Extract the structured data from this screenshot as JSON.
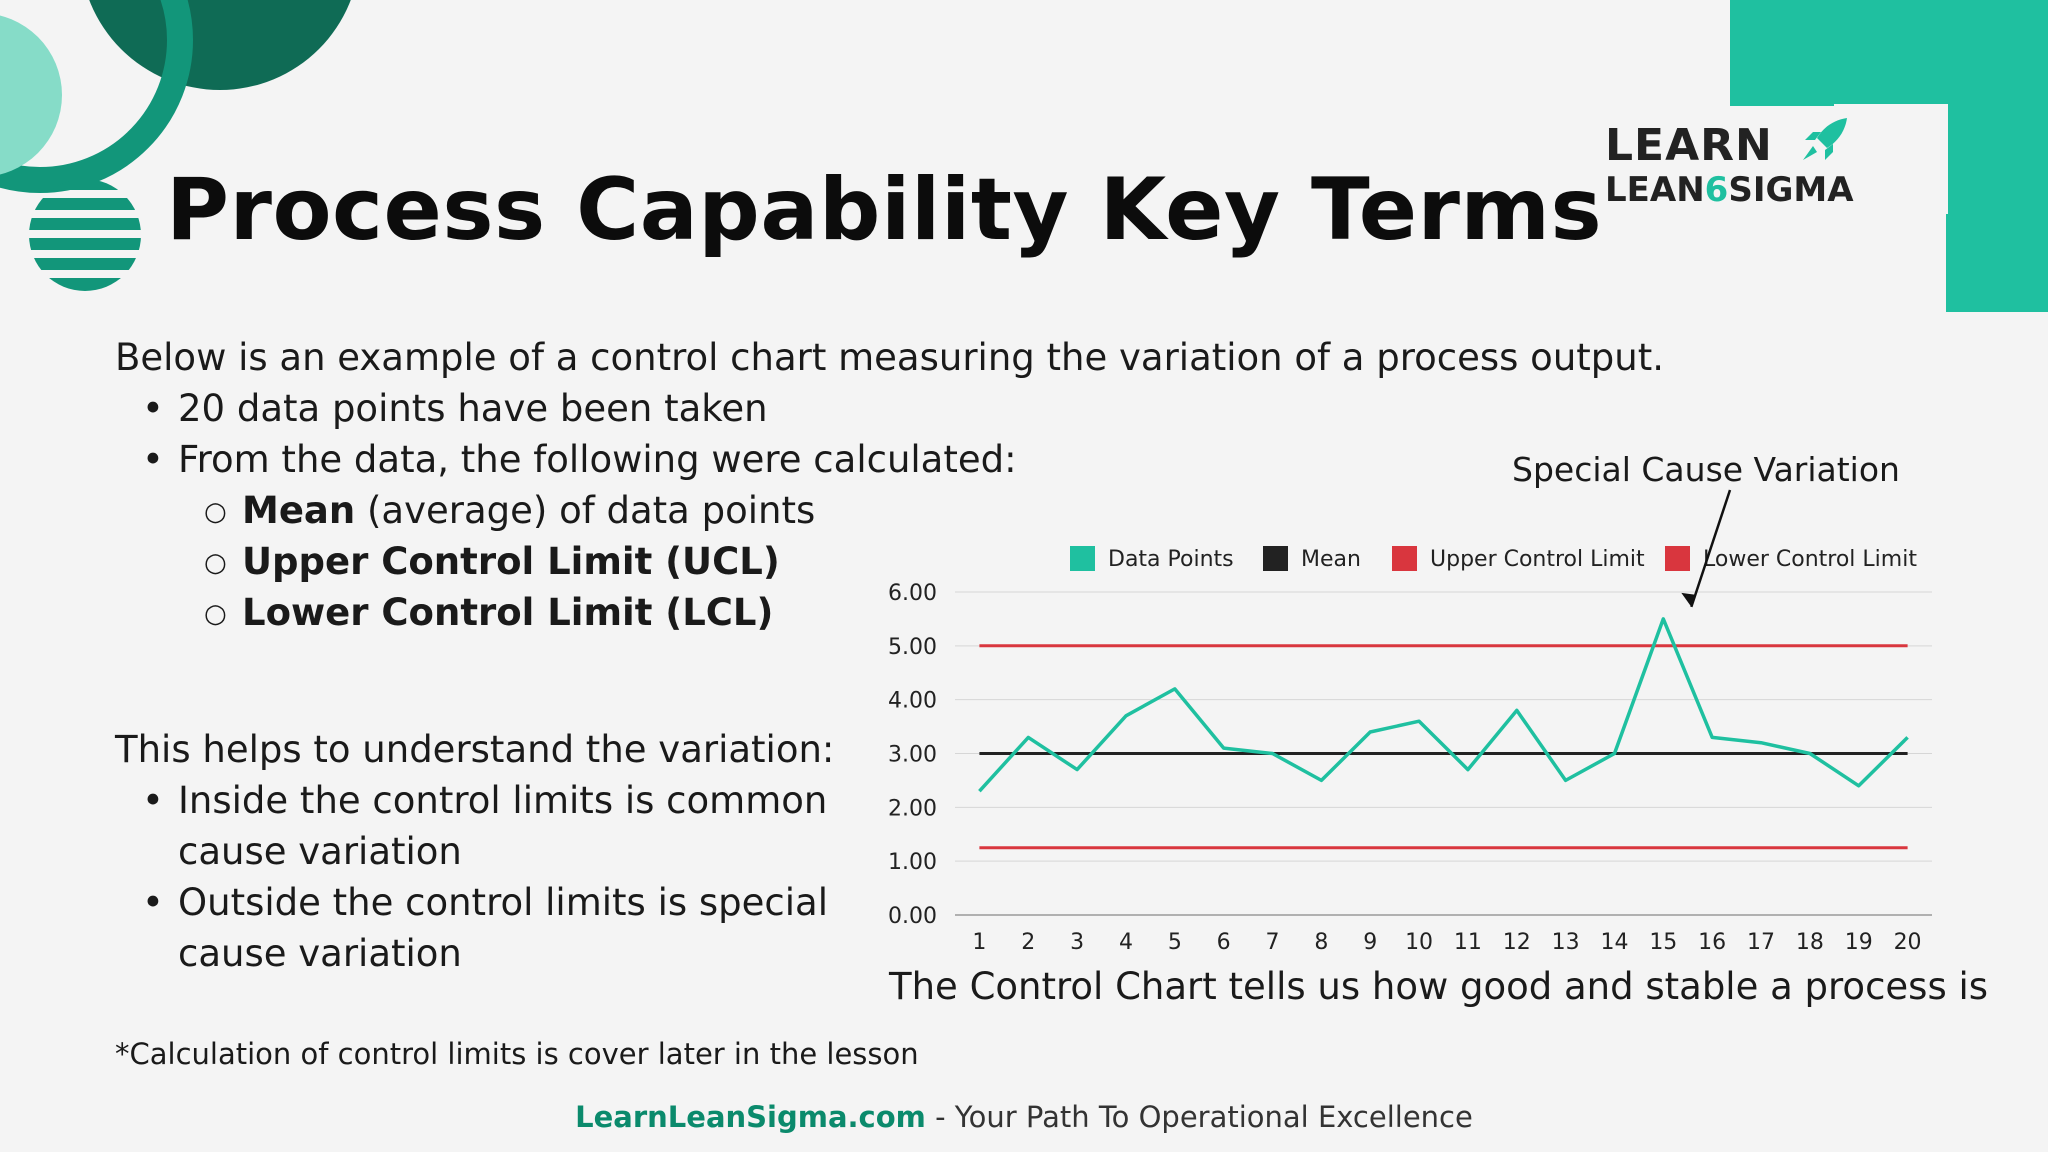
{
  "title": "Process Capability Key Terms",
  "logo": {
    "line1": "LEARN",
    "line2_a": "LEAN",
    "line2_b": "6",
    "line2_c": "SIGMA"
  },
  "intro": "Below is an example of a control chart measuring the variation of a process output.",
  "bullets": [
    "20 data points have been taken",
    "From the data, the following were calculated:"
  ],
  "subitems": [
    {
      "bold": "Mean",
      "rest": " (average) of data points"
    },
    {
      "bold": "Upper Control Limit (UCL)",
      "rest": ""
    },
    {
      "bold": "Lower Control Limit (LCL)",
      "rest": ""
    }
  ],
  "helps_heading": "This helps to understand the variation:",
  "helps_bullets": [
    [
      "Inside the control limits is common",
      "cause variation"
    ],
    [
      "Outside the control limits is special",
      "cause variation"
    ]
  ],
  "footnote": "*Calculation of control limits is cover later in the lesson",
  "footer": {
    "site": "LearnLeanSigma.com",
    "tagline": " - Your Path To Operational Excellence"
  },
  "chart_caption": "The Control Chart tells us how good and stable a process is",
  "annotation": "Special Cause Variation",
  "colors": {
    "accent": "#1fc0a0",
    "dark_green": "#0f6b55",
    "limit": "#d9363e",
    "mean": "#222222"
  },
  "chart_data": {
    "type": "line",
    "x": [
      1,
      2,
      3,
      4,
      5,
      6,
      7,
      8,
      9,
      10,
      11,
      12,
      13,
      14,
      15,
      16,
      17,
      18,
      19,
      20
    ],
    "series": [
      {
        "name": "Data Points",
        "color": "#1fc0a0",
        "values": [
          2.3,
          3.3,
          2.7,
          3.7,
          4.2,
          3.1,
          3.0,
          2.5,
          3.4,
          3.6,
          2.7,
          3.8,
          2.5,
          3.0,
          5.5,
          3.3,
          3.2,
          3.0,
          2.4,
          3.3
        ]
      },
      {
        "name": "Mean",
        "color": "#222222",
        "values": [
          3,
          3,
          3,
          3,
          3,
          3,
          3,
          3,
          3,
          3,
          3,
          3,
          3,
          3,
          3,
          3,
          3,
          3,
          3,
          3
        ]
      },
      {
        "name": "Upper Control Limit",
        "color": "#d9363e",
        "values": [
          5,
          5,
          5,
          5,
          5,
          5,
          5,
          5,
          5,
          5,
          5,
          5,
          5,
          5,
          5,
          5,
          5,
          5,
          5,
          5
        ]
      },
      {
        "name": "Lower Control Limit",
        "color": "#d9363e",
        "values": [
          1.25,
          1.25,
          1.25,
          1.25,
          1.25,
          1.25,
          1.25,
          1.25,
          1.25,
          1.25,
          1.25,
          1.25,
          1.25,
          1.25,
          1.25,
          1.25,
          1.25,
          1.25,
          1.25,
          1.25
        ]
      }
    ],
    "ylim": [
      0,
      6
    ],
    "yticks": [
      "0.00",
      "1.00",
      "2.00",
      "3.00",
      "4.00",
      "5.00",
      "6.00"
    ],
    "grid": true,
    "legend": "top"
  }
}
